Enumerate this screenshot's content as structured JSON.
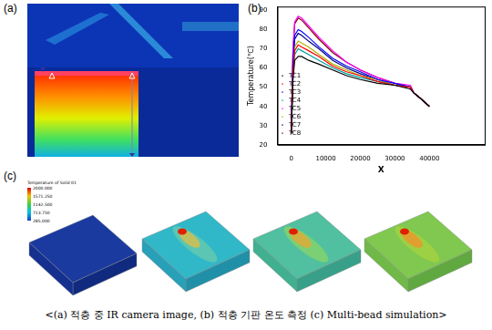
{
  "chart_data": {
    "type": "line",
    "x_label": "X",
    "y_label": "Temperature(℃)",
    "x": [
      0,
      500,
      1000,
      2000,
      3000,
      5000,
      8000,
      12000,
      16000,
      20000,
      25000,
      30000,
      34500,
      35500,
      37500,
      40000
    ],
    "series": [
      {
        "name": "TC1",
        "color": "#000000",
        "values": [
          26,
          54,
          64,
          66,
          66,
          64,
          62,
          59,
          56,
          54,
          52,
          51,
          49,
          47,
          44,
          40
        ]
      },
      {
        "name": "TC2",
        "color": "#ff0000",
        "values": [
          26,
          58,
          69,
          72,
          71,
          69,
          66,
          61,
          58,
          56,
          53,
          51,
          50,
          47,
          44,
          40
        ]
      },
      {
        "name": "TC3",
        "color": "#0000ff",
        "values": [
          26,
          64,
          77,
          80,
          79,
          76,
          71,
          65,
          61,
          58,
          54,
          52,
          50,
          47,
          44,
          40
        ]
      },
      {
        "name": "TC4",
        "color": "#00a0a0",
        "values": [
          26,
          57,
          67,
          70,
          69,
          67,
          64,
          60,
          57,
          55,
          53,
          51,
          50,
          47,
          44,
          40
        ]
      },
      {
        "name": "TC5",
        "color": "#ff00ff",
        "values": [
          26,
          70,
          84,
          87,
          86,
          82,
          76,
          69,
          63,
          59,
          55,
          52,
          51,
          47,
          44,
          40
        ]
      },
      {
        "name": "TC6",
        "color": "#b0b000",
        "values": [
          26,
          60,
          71,
          74,
          73,
          71,
          67,
          62,
          59,
          56,
          54,
          51,
          50,
          47,
          44,
          40
        ]
      },
      {
        "name": "TC7",
        "color": "#000080",
        "values": [
          26,
          62,
          75,
          78,
          77,
          74,
          70,
          64,
          60,
          57,
          54,
          51,
          50,
          47,
          44,
          40
        ]
      },
      {
        "name": "TC8",
        "color": "#800000",
        "values": [
          26,
          69,
          83,
          86,
          85,
          81,
          75,
          68,
          63,
          59,
          55,
          52,
          50,
          47,
          44,
          40
        ]
      }
    ],
    "xlim": [
      -4000,
      56000
    ],
    "xticks": [
      0,
      10000,
      20000,
      30000,
      40000
    ],
    "ylim": [
      20,
      92
    ],
    "yticks": [
      20,
      30,
      40,
      50,
      60,
      70,
      80,
      90
    ],
    "grid": false,
    "legend": "top right",
    "marker": "none",
    "line_style": "solid"
  },
  "panel_labels": [
    "(a)",
    "(b)",
    "(c)"
  ],
  "colorbar": {
    "title": "Temperature of Solid 01",
    "range": [
      285,
      2000
    ],
    "ticks": [
      {
        "value": 2000,
        "label": "2000.000"
      },
      {
        "value": 1571.25,
        "label": "1571.250"
      },
      {
        "value": 1142.5,
        "label": "1142.500"
      },
      {
        "value": 713.75,
        "label": "713.750"
      },
      {
        "value": 285,
        "label": "285.000"
      }
    ]
  },
  "caption": "<(a) 적층 중 IR camera image, (b) 적층 기판 온도 측정 (c) Multi-bead simulation>"
}
